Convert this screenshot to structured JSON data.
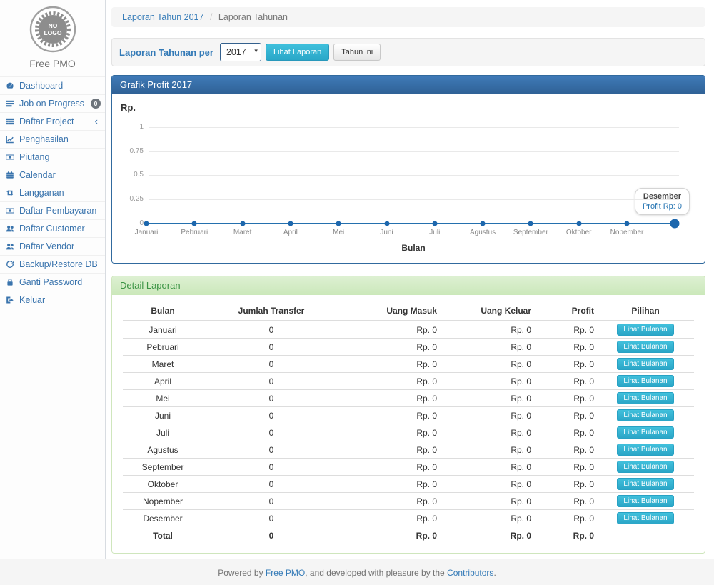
{
  "sidebar": {
    "logo_line1": "NO",
    "logo_line2": "LOGO",
    "brand": "Free PMO",
    "items": [
      {
        "label": "Dashboard",
        "icon": "dashboard-icon"
      },
      {
        "label": "Job on Progress",
        "icon": "tasks-icon",
        "badge": "0"
      },
      {
        "label": "Daftar Project",
        "icon": "table-icon",
        "chevron": "‹"
      },
      {
        "label": "Penghasilan",
        "icon": "line-chart-icon"
      },
      {
        "label": "Piutang",
        "icon": "money-icon"
      },
      {
        "label": "Calendar",
        "icon": "calendar-icon"
      },
      {
        "label": "Langganan",
        "icon": "retweet-icon"
      },
      {
        "label": "Daftar Pembayaran",
        "icon": "money-icon"
      },
      {
        "label": "Daftar Customer",
        "icon": "users-icon"
      },
      {
        "label": "Daftar Vendor",
        "icon": "users-icon"
      },
      {
        "label": "Backup/Restore DB",
        "icon": "refresh-icon"
      },
      {
        "label": "Ganti Password",
        "icon": "lock-icon"
      },
      {
        "label": "Keluar",
        "icon": "sign-out-icon"
      }
    ]
  },
  "breadcrumb": {
    "link": "Laporan Tahun 2017",
    "separator": "/",
    "current": "Laporan Tahunan"
  },
  "filter": {
    "label": "Laporan Tahunan per",
    "year_value": "2017",
    "view_button": "Lihat Laporan",
    "current_year_button": "Tahun ini"
  },
  "chart_panel": {
    "title": "Grafik Profit 2017"
  },
  "chart_data": {
    "type": "line",
    "title": "Grafik Profit 2017",
    "ylabel": "Rp.",
    "xlabel": "Bulan",
    "x": [
      "Januari",
      "Pebruari",
      "Maret",
      "April",
      "Mei",
      "Juni",
      "Juli",
      "Agustus",
      "September",
      "Oktober",
      "Nopember",
      "Desember"
    ],
    "series": [
      {
        "name": "Profit",
        "values": [
          0,
          0,
          0,
          0,
          0,
          0,
          0,
          0,
          0,
          0,
          0,
          0
        ]
      }
    ],
    "yticks": [
      0,
      0.25,
      0.5,
      0.75,
      1
    ],
    "ylim": [
      0,
      1
    ],
    "grid": true,
    "line_color": "#2470ae",
    "tooltip": {
      "label": "Desember",
      "value": "Profit Rp: 0"
    }
  },
  "detail_panel": {
    "title": "Detail Laporan",
    "table": {
      "columns": [
        "Bulan",
        "Jumlah Transfer",
        "Uang Masuk",
        "Uang Keluar",
        "Profit",
        "Pilihan"
      ],
      "action_label": "Lihat Bulanan",
      "rows": [
        [
          "Januari",
          "0",
          "Rp. 0",
          "Rp. 0",
          "Rp. 0",
          "Lihat Bulanan"
        ],
        [
          "Pebruari",
          "0",
          "Rp. 0",
          "Rp. 0",
          "Rp. 0",
          "Lihat Bulanan"
        ],
        [
          "Maret",
          "0",
          "Rp. 0",
          "Rp. 0",
          "Rp. 0",
          "Lihat Bulanan"
        ],
        [
          "April",
          "0",
          "Rp. 0",
          "Rp. 0",
          "Rp. 0",
          "Lihat Bulanan"
        ],
        [
          "Mei",
          "0",
          "Rp. 0",
          "Rp. 0",
          "Rp. 0",
          "Lihat Bulanan"
        ],
        [
          "Juni",
          "0",
          "Rp. 0",
          "Rp. 0",
          "Rp. 0",
          "Lihat Bulanan"
        ],
        [
          "Juli",
          "0",
          "Rp. 0",
          "Rp. 0",
          "Rp. 0",
          "Lihat Bulanan"
        ],
        [
          "Agustus",
          "0",
          "Rp. 0",
          "Rp. 0",
          "Rp. 0",
          "Lihat Bulanan"
        ],
        [
          "September",
          "0",
          "Rp. 0",
          "Rp. 0",
          "Rp. 0",
          "Lihat Bulanan"
        ],
        [
          "Oktober",
          "0",
          "Rp. 0",
          "Rp. 0",
          "Rp. 0",
          "Lihat Bulanan"
        ],
        [
          "Nopember",
          "0",
          "Rp. 0",
          "Rp. 0",
          "Rp. 0",
          "Lihat Bulanan"
        ],
        [
          "Desember",
          "0",
          "Rp. 0",
          "Rp. 0",
          "Rp. 0",
          "Lihat Bulanan"
        ]
      ],
      "total_row": [
        "Total",
        "0",
        "Rp. 0",
        "Rp. 0",
        "Rp. 0",
        ""
      ]
    }
  },
  "footer": {
    "prefix": "Powered by ",
    "link1": "Free PMO",
    "middle": ", and developed with pleasure by the ",
    "link2": "Contributors",
    "suffix": "."
  }
}
